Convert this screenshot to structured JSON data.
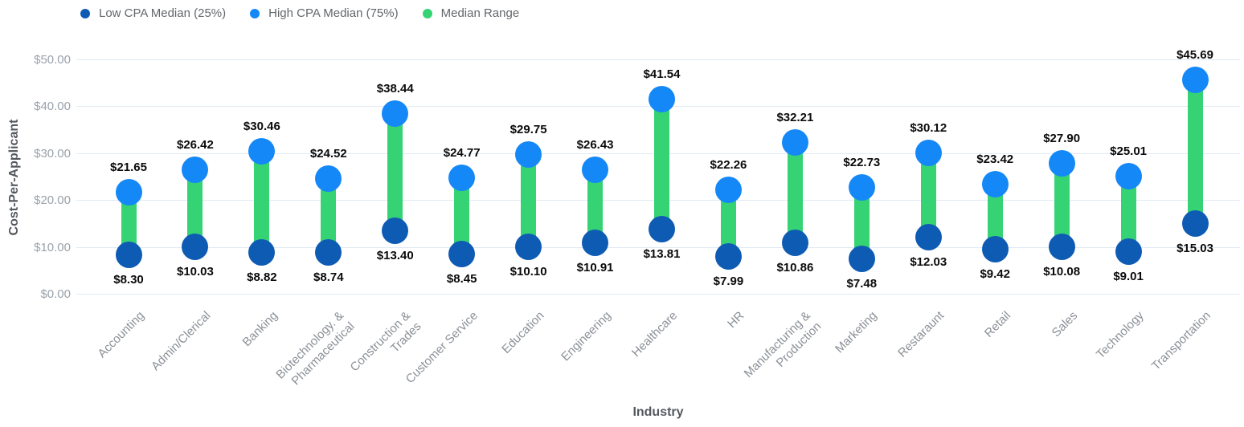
{
  "legend": {
    "items": [
      {
        "label": "Low CPA Median (25%)",
        "color": "#0e5bb4"
      },
      {
        "label": "High CPA Median (75%)",
        "color": "#1588f8"
      },
      {
        "label": "Median Range",
        "color": "#35d374"
      }
    ]
  },
  "chart_data": {
    "type": "dumbbell",
    "title": "",
    "xlabel": "Industry",
    "ylabel": "Cost-Per-Applicant",
    "ylim": [
      0,
      50
    ],
    "grid": true,
    "legend_position": "top-left",
    "yticks": [
      {
        "value": 0,
        "label": "$0.00"
      },
      {
        "value": 10,
        "label": "$10.00"
      },
      {
        "value": 20,
        "label": "$20.00"
      },
      {
        "value": 30,
        "label": "$30.00"
      },
      {
        "value": 40,
        "label": "$40.00"
      },
      {
        "value": 50,
        "label": "$50.00"
      }
    ],
    "categories": [
      "Accounting",
      "Admin/Clerical",
      "Banking",
      "Biotechnology. &\nPharmaceutical",
      "Construction &\nTrades",
      "Customer Service",
      "Education",
      "Engineering",
      "Healthcare",
      "HR",
      "Manufacturing &\nProduction",
      "Marketing",
      "Restaraunt",
      "Retail",
      "Sales",
      "Technology",
      "Transportation"
    ],
    "series": [
      {
        "name": "Low CPA Median (25%)",
        "color": "#0e5bb4",
        "values": [
          8.3,
          10.03,
          8.82,
          8.74,
          13.4,
          8.45,
          10.1,
          10.91,
          13.81,
          7.99,
          10.86,
          7.48,
          12.03,
          9.42,
          10.08,
          9.01,
          15.03
        ],
        "labels": [
          "$8.30",
          "$10.03",
          "$8.82",
          "$8.74",
          "$13.40",
          "$8.45",
          "$10.10",
          "$10.91",
          "$13.81",
          "$7.99",
          "$10.86",
          "$7.48",
          "$12.03",
          "$9.42",
          "$10.08",
          "$9.01",
          "$15.03"
        ]
      },
      {
        "name": "High CPA Median (75%)",
        "color": "#1588f8",
        "values": [
          21.65,
          26.42,
          30.46,
          24.52,
          38.44,
          24.77,
          29.75,
          26.43,
          41.54,
          22.26,
          32.21,
          22.73,
          30.12,
          23.42,
          27.9,
          25.01,
          45.69
        ],
        "labels": [
          "$21.65",
          "$26.42",
          "$30.46",
          "$24.52",
          "$38.44",
          "$24.77",
          "$29.75",
          "$26.43",
          "$41.54",
          "$22.26",
          "$32.21",
          "$22.73",
          "$30.12",
          "$23.42",
          "$27.90",
          "$25.01",
          "$45.69"
        ]
      }
    ],
    "range_color": "#35d374"
  },
  "colors": {
    "grid": "#e0eaf3",
    "y_tick_text": "#9aa2ab",
    "x_tick_text": "#8b9097",
    "axis_title": "#54585e",
    "legend_text": "#63676c",
    "value_label": "#0b0b0b",
    "background": "#ffffff"
  }
}
